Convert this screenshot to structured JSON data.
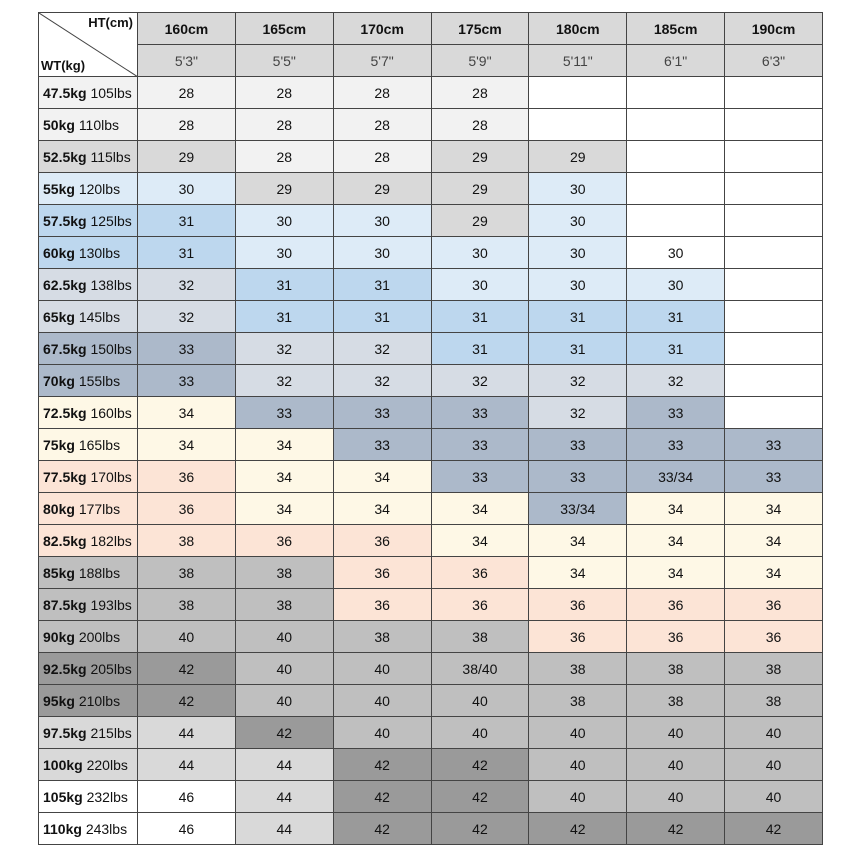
{
  "header": {
    "height_label": "HT(cm)",
    "weight_label": "WT(kg)",
    "columns": [
      {
        "cm": "160cm",
        "ft": "5'3\""
      },
      {
        "cm": "165cm",
        "ft": "5'5\""
      },
      {
        "cm": "170cm",
        "ft": "5'7\""
      },
      {
        "cm": "175cm",
        "ft": "5'9\""
      },
      {
        "cm": "180cm",
        "ft": "5'11\""
      },
      {
        "cm": "185cm",
        "ft": "6'1\""
      },
      {
        "cm": "190cm",
        "ft": "6'3\""
      }
    ]
  },
  "table": {
    "rows": [
      {
        "kg": "47.5kg",
        "lbs": "105lbs",
        "cells": [
          28,
          28,
          28,
          28,
          null,
          null,
          null
        ]
      },
      {
        "kg": "50kg",
        "lbs": "110lbs",
        "cells": [
          28,
          28,
          28,
          28,
          null,
          null,
          null
        ]
      },
      {
        "kg": "52.5kg",
        "lbs": "115lbs",
        "cells": [
          29,
          28,
          28,
          29,
          29,
          null,
          null
        ]
      },
      {
        "kg": "55kg",
        "lbs": "120lbs",
        "cells": [
          30,
          29,
          29,
          29,
          30,
          null,
          null
        ]
      },
      {
        "kg": "57.5kg",
        "lbs": "125lbs",
        "cells": [
          31,
          30,
          30,
          29,
          30,
          null,
          null
        ]
      },
      {
        "kg": "60kg",
        "lbs": "130lbs",
        "cells": [
          31,
          30,
          30,
          30,
          30,
          30,
          null
        ]
      },
      {
        "kg": "62.5kg",
        "lbs": "138lbs",
        "cells": [
          32,
          31,
          31,
          30,
          30,
          30,
          null
        ]
      },
      {
        "kg": "65kg",
        "lbs": "145lbs",
        "cells": [
          32,
          31,
          31,
          31,
          31,
          31,
          null
        ]
      },
      {
        "kg": "67.5kg",
        "lbs": "150lbs",
        "cells": [
          33,
          32,
          32,
          31,
          31,
          31,
          null
        ]
      },
      {
        "kg": "70kg",
        "lbs": "155lbs",
        "cells": [
          33,
          32,
          32,
          32,
          32,
          32,
          null
        ]
      },
      {
        "kg": "72.5kg",
        "lbs": "160lbs",
        "cells": [
          34,
          33,
          33,
          33,
          32,
          33,
          null
        ]
      },
      {
        "kg": "75kg",
        "lbs": "165lbs",
        "cells": [
          34,
          34,
          33,
          33,
          33,
          33,
          33
        ]
      },
      {
        "kg": "77.5kg",
        "lbs": "170lbs",
        "cells": [
          36,
          34,
          34,
          33,
          33,
          "33/34",
          33
        ]
      },
      {
        "kg": "80kg",
        "lbs": "177lbs",
        "cells": [
          36,
          34,
          34,
          34,
          "33/34",
          34,
          34
        ]
      },
      {
        "kg": "82.5kg",
        "lbs": "182lbs",
        "cells": [
          38,
          36,
          36,
          34,
          34,
          34,
          34
        ]
      },
      {
        "kg": "85kg",
        "lbs": "188lbs",
        "cells": [
          38,
          38,
          36,
          36,
          34,
          34,
          34
        ]
      },
      {
        "kg": "87.5kg",
        "lbs": "193lbs",
        "cells": [
          38,
          38,
          36,
          36,
          36,
          36,
          36
        ]
      },
      {
        "kg": "90kg",
        "lbs": "200lbs",
        "cells": [
          40,
          40,
          38,
          38,
          36,
          36,
          36
        ]
      },
      {
        "kg": "92.5kg",
        "lbs": "205lbs",
        "cells": [
          42,
          40,
          40,
          "38/40",
          38,
          38,
          38
        ]
      },
      {
        "kg": "95kg",
        "lbs": "210lbs",
        "cells": [
          42,
          40,
          40,
          40,
          38,
          38,
          38
        ]
      },
      {
        "kg": "97.5kg",
        "lbs": "215lbs",
        "cells": [
          44,
          42,
          40,
          40,
          40,
          40,
          40
        ]
      },
      {
        "kg": "100kg",
        "lbs": "220lbs",
        "cells": [
          44,
          44,
          42,
          42,
          40,
          40,
          40
        ]
      },
      {
        "kg": "105kg",
        "lbs": "232lbs",
        "cells": [
          46,
          44,
          42,
          42,
          40,
          40,
          40
        ]
      },
      {
        "kg": "110kg",
        "lbs": "243lbs",
        "cells": [
          46,
          44,
          42,
          42,
          42,
          42,
          42
        ]
      }
    ]
  }
}
